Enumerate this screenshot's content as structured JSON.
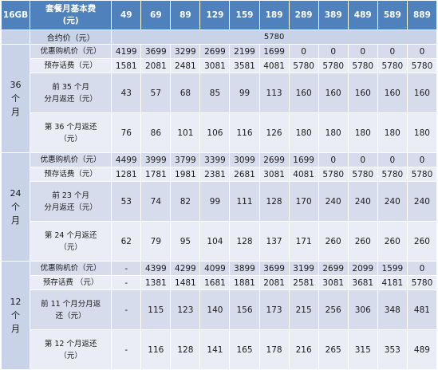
{
  "header": {
    "capacity": "16GB",
    "fee_label": "套餐月基本费\n(元)",
    "fees": [
      "49",
      "69",
      "89",
      "129",
      "159",
      "189",
      "289",
      "389",
      "489",
      "589",
      "889"
    ]
  },
  "contract_price": {
    "label": "合约价（元）",
    "value": "5780"
  },
  "plans": [
    {
      "name": "36\n个\n月",
      "rows": [
        {
          "label": "优惠购机价（元）",
          "values": [
            "4199",
            "3699",
            "3299",
            "2699",
            "2199",
            "1699",
            "0",
            "0",
            "0",
            "0",
            "0"
          ]
        },
        {
          "label": "预存话费（元）",
          "values": [
            "1581",
            "2081",
            "2481",
            "3081",
            "3581",
            "4081",
            "5780",
            "5780",
            "5780",
            "5780",
            "5780"
          ]
        },
        {
          "label": "前 35 个月\n分月返还（元）",
          "values": [
            "43",
            "57",
            "68",
            "85",
            "99",
            "113",
            "160",
            "160",
            "160",
            "160",
            "160"
          ]
        },
        {
          "label": "第 36 个月返还\n（元）",
          "values": [
            "76",
            "86",
            "101",
            "106",
            "116",
            "126",
            "180",
            "180",
            "180",
            "180",
            "180"
          ]
        }
      ]
    },
    {
      "name": "24\n个\n月",
      "rows": [
        {
          "label": "优惠购机价（元）",
          "values": [
            "4499",
            "3999",
            "3799",
            "3399",
            "3099",
            "2699",
            "1699",
            "0",
            "0",
            "0",
            "0"
          ]
        },
        {
          "label": "预存话费（元）",
          "values": [
            "1281",
            "1781",
            "1981",
            "2381",
            "2681",
            "3081",
            "4081",
            "5780",
            "5780",
            "5780",
            "5780"
          ]
        },
        {
          "label": "前 23 个月\n分月返还（元）",
          "values": [
            "53",
            "74",
            "82",
            "99",
            "111",
            "128",
            "170",
            "240",
            "240",
            "240",
            "240"
          ]
        },
        {
          "label": "第 24 个月返还\n（元）",
          "values": [
            "62",
            "79",
            "95",
            "104",
            "128",
            "137",
            "171",
            "260",
            "260",
            "260",
            "260"
          ]
        }
      ]
    },
    {
      "name": "12\n个\n月",
      "rows": [
        {
          "label": "优惠购机价（元）",
          "values": [
            "-",
            "4399",
            "4299",
            "4099",
            "3899",
            "3699",
            "3199",
            "2699",
            "2099",
            "1599",
            "0"
          ]
        },
        {
          "label": "预存话费 （元）",
          "values": [
            "-",
            "1381",
            "1481",
            "1681",
            "1881",
            "2081",
            "2581",
            "3081",
            "3681",
            "4181",
            "5780"
          ]
        },
        {
          "label": "前 11 个月分月返\n还（元）",
          "values": [
            "-",
            "115",
            "123",
            "140",
            "156",
            "173",
            "215",
            "256",
            "306",
            "348",
            "481"
          ]
        },
        {
          "label": "第 12 个月返还\n（元）",
          "values": [
            "-",
            "116",
            "128",
            "141",
            "165",
            "178",
            "216",
            "265",
            "315",
            "353",
            "489"
          ]
        }
      ]
    }
  ]
}
